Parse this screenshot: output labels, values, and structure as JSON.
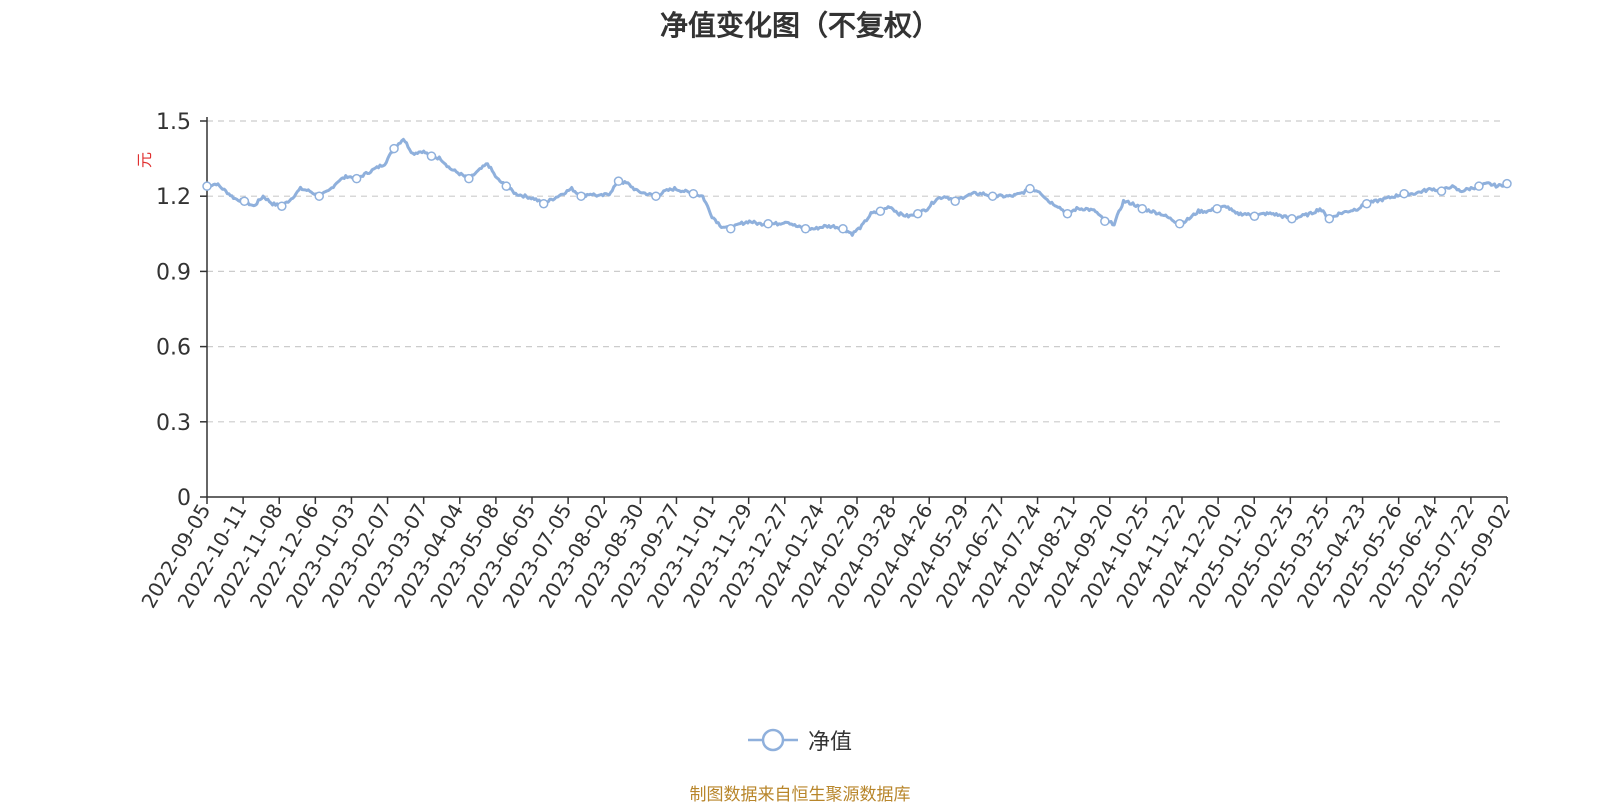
{
  "chart_data": {
    "type": "line",
    "title": "净值变化图（不复权）",
    "ylabel": "元",
    "ylim": [
      0,
      1.5
    ],
    "yticks": [
      "0",
      "0.3",
      "0.6",
      "0.9",
      "1.2",
      "1.5"
    ],
    "grid": true,
    "legend_position": "bottom-center",
    "source_note": "制图数据来自恒生聚源数据库",
    "x_ticks": [
      "2022-09-05",
      "2022-10-11",
      "2022-11-08",
      "2022-12-06",
      "2023-01-03",
      "2023-02-07",
      "2023-03-07",
      "2023-04-04",
      "2023-05-08",
      "2023-06-05",
      "2023-07-05",
      "2023-08-02",
      "2023-08-30",
      "2023-09-27",
      "2023-11-01",
      "2023-11-29",
      "2023-12-27",
      "2024-01-24",
      "2024-02-29",
      "2024-03-28",
      "2024-04-26",
      "2024-05-29",
      "2024-06-27",
      "2024-07-24",
      "2024-08-21",
      "2024-09-20",
      "2024-10-25",
      "2024-11-22",
      "2024-12-20",
      "2025-01-20",
      "2025-02-25",
      "2025-03-25",
      "2025-04-23",
      "2025-05-26",
      "2025-06-24",
      "2025-07-22",
      "2025-09-02"
    ],
    "series": [
      {
        "name": "净值",
        "color": "#8fb0dc",
        "values": [
          1.24,
          1.25,
          1.22,
          1.19,
          1.18,
          1.16,
          1.2,
          1.17,
          1.16,
          1.19,
          1.23,
          1.22,
          1.2,
          1.22,
          1.26,
          1.28,
          1.27,
          1.29,
          1.31,
          1.33,
          1.39,
          1.43,
          1.37,
          1.38,
          1.36,
          1.35,
          1.31,
          1.29,
          1.27,
          1.3,
          1.33,
          1.27,
          1.24,
          1.21,
          1.2,
          1.19,
          1.17,
          1.19,
          1.21,
          1.23,
          1.2,
          1.21,
          1.2,
          1.21,
          1.26,
          1.25,
          1.22,
          1.21,
          1.2,
          1.22,
          1.23,
          1.22,
          1.21,
          1.2,
          1.12,
          1.08,
          1.07,
          1.09,
          1.1,
          1.09,
          1.09,
          1.09,
          1.1,
          1.08,
          1.07,
          1.07,
          1.08,
          1.08,
          1.07,
          1.05,
          1.08,
          1.13,
          1.14,
          1.16,
          1.13,
          1.12,
          1.13,
          1.15,
          1.19,
          1.2,
          1.18,
          1.2,
          1.21,
          1.21,
          1.2,
          1.2,
          1.2,
          1.21,
          1.23,
          1.22,
          1.18,
          1.16,
          1.13,
          1.15,
          1.15,
          1.14,
          1.1,
          1.09,
          1.18,
          1.17,
          1.15,
          1.14,
          1.13,
          1.11,
          1.09,
          1.11,
          1.14,
          1.14,
          1.15,
          1.16,
          1.13,
          1.13,
          1.12,
          1.13,
          1.13,
          1.12,
          1.11,
          1.12,
          1.13,
          1.15,
          1.11,
          1.13,
          1.14,
          1.15,
          1.17,
          1.18,
          1.19,
          1.2,
          1.21,
          1.21,
          1.22,
          1.23,
          1.22,
          1.24,
          1.22,
          1.23,
          1.24,
          1.25,
          1.24,
          1.25
        ]
      }
    ]
  },
  "legend": {
    "label": "净值"
  }
}
